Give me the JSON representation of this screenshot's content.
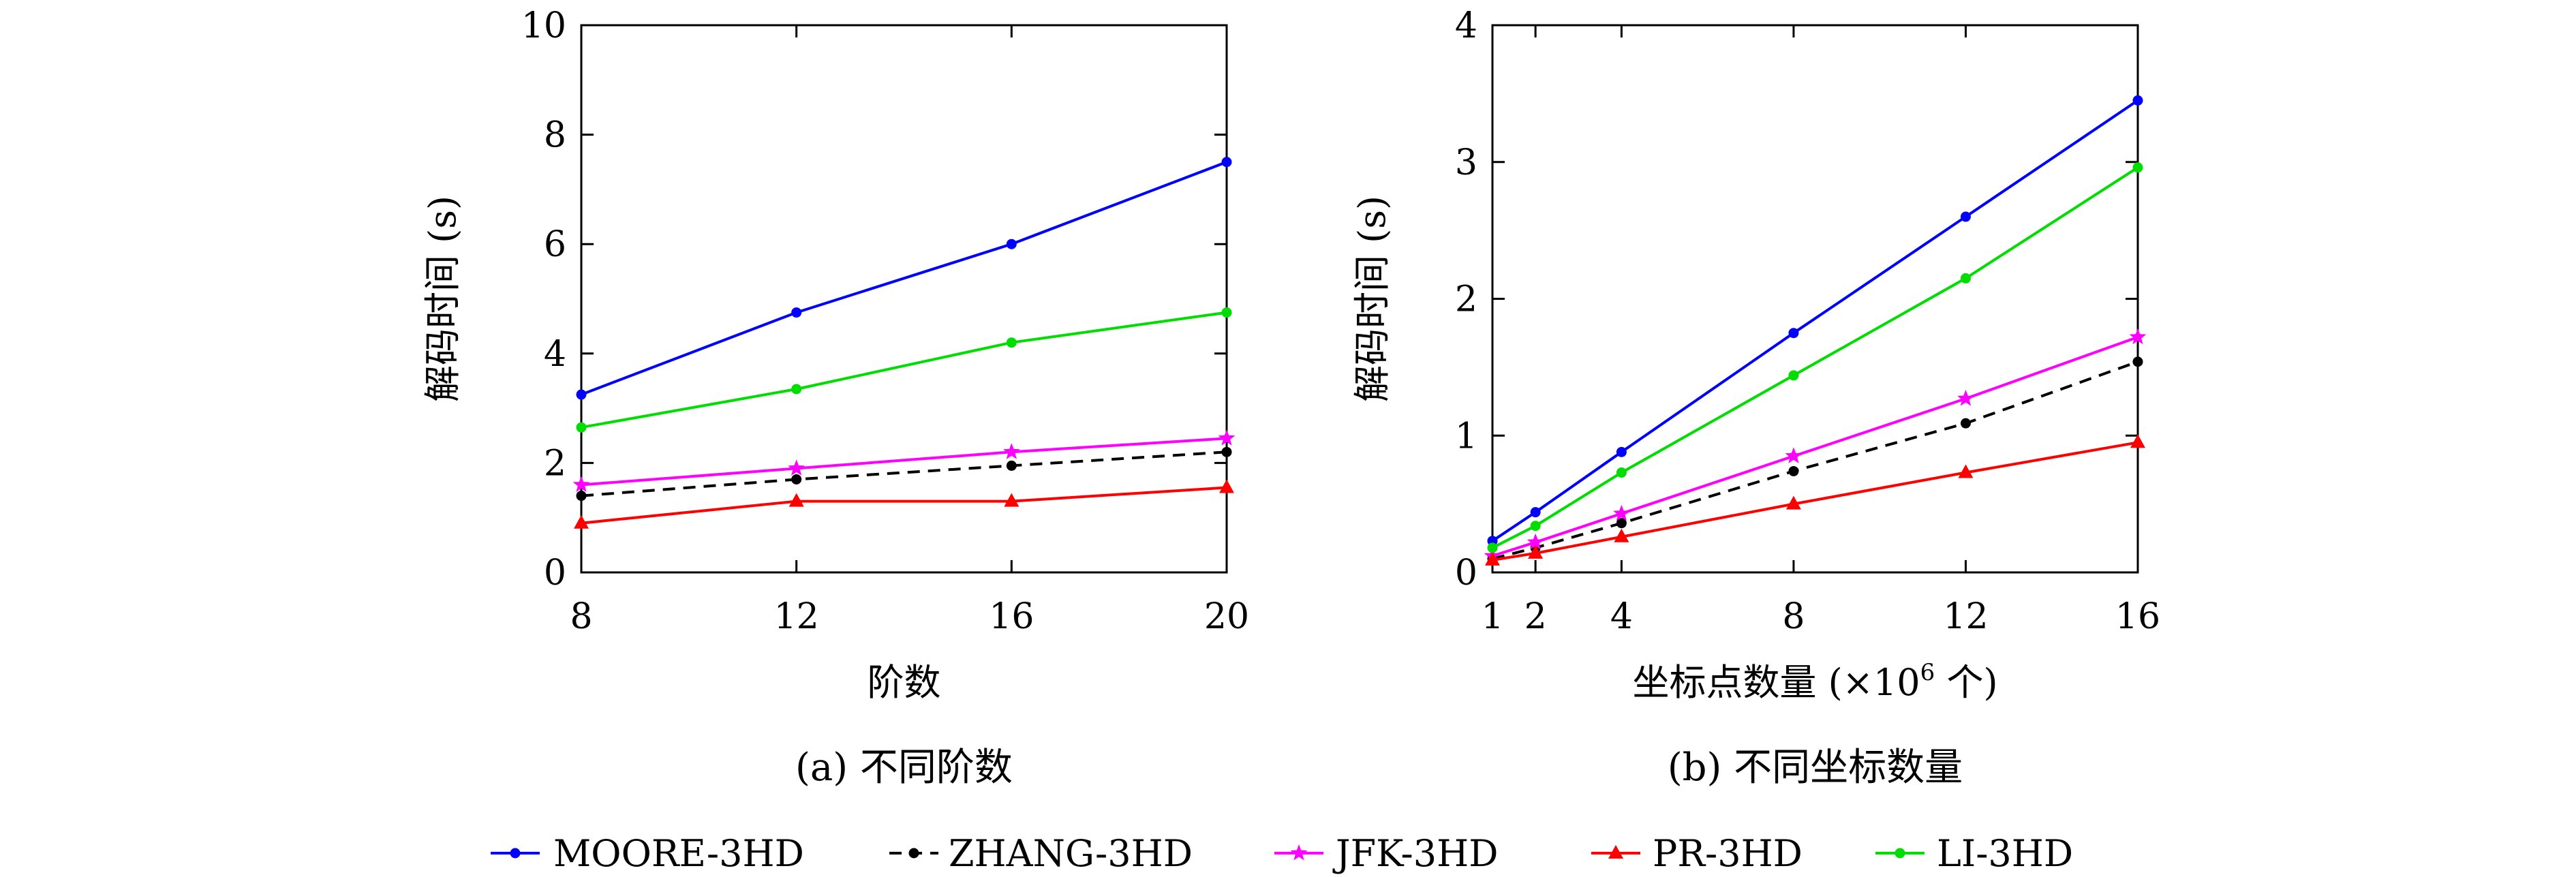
{
  "legend": {
    "items": [
      {
        "name": "MOORE-3HD",
        "color": "#0000ff",
        "marker": "dot",
        "dash": false
      },
      {
        "name": "ZHANG-3HD",
        "color": "#000000",
        "marker": "dot",
        "dash": true
      },
      {
        "name": "JFK-3HD",
        "color": "#ff00ff",
        "marker": "star",
        "dash": false
      },
      {
        "name": "PR-3HD",
        "color": "#ff0000",
        "marker": "triangle",
        "dash": false
      },
      {
        "name": "LI-3HD",
        "color": "#00dd00",
        "marker": "dot",
        "dash": false
      }
    ]
  },
  "chart_data": [
    {
      "type": "line",
      "caption": "(a) 不同阶数",
      "xlabel": "阶数",
      "ylabel": "解码时间 (s)",
      "xlim": [
        8,
        20
      ],
      "ylim": [
        0,
        10
      ],
      "xticks": [
        8,
        12,
        16,
        20
      ],
      "yticks": [
        0,
        2,
        4,
        6,
        8,
        10
      ],
      "x": [
        8,
        12,
        16,
        20
      ],
      "series": [
        {
          "name": "MOORE-3HD",
          "values": [
            3.25,
            4.75,
            6.0,
            7.5
          ]
        },
        {
          "name": "ZHANG-3HD",
          "values": [
            1.4,
            1.7,
            1.95,
            2.2
          ]
        },
        {
          "name": "JFK-3HD",
          "values": [
            1.6,
            1.9,
            2.2,
            2.45
          ]
        },
        {
          "name": "PR-3HD",
          "values": [
            0.9,
            1.3,
            1.3,
            1.55
          ]
        },
        {
          "name": "LI-3HD",
          "values": [
            2.65,
            3.35,
            4.2,
            4.75
          ]
        }
      ]
    },
    {
      "type": "line",
      "caption": "(b) 不同坐标数量",
      "xlabel": "坐标点数量 (×10",
      "xlabel_sup": "6",
      "xlabel_tail": " 个)",
      "ylabel": "解码时间 (s)",
      "xlim": [
        1,
        16
      ],
      "ylim": [
        0,
        4
      ],
      "xticks": [
        1,
        2,
        4,
        8,
        12,
        16
      ],
      "yticks": [
        0,
        1,
        2,
        3,
        4
      ],
      "x": [
        1,
        2,
        4,
        8,
        12,
        16
      ],
      "series": [
        {
          "name": "MOORE-3HD",
          "values": [
            0.23,
            0.44,
            0.88,
            1.75,
            2.6,
            3.45
          ]
        },
        {
          "name": "ZHANG-3HD",
          "values": [
            0.1,
            0.18,
            0.36,
            0.74,
            1.09,
            1.54
          ]
        },
        {
          "name": "JFK-3HD",
          "values": [
            0.12,
            0.22,
            0.43,
            0.85,
            1.27,
            1.72
          ]
        },
        {
          "name": "PR-3HD",
          "values": [
            0.09,
            0.14,
            0.26,
            0.5,
            0.73,
            0.95
          ]
        },
        {
          "name": "LI-3HD",
          "values": [
            0.18,
            0.34,
            0.73,
            1.44,
            2.15,
            2.96
          ]
        }
      ]
    }
  ]
}
